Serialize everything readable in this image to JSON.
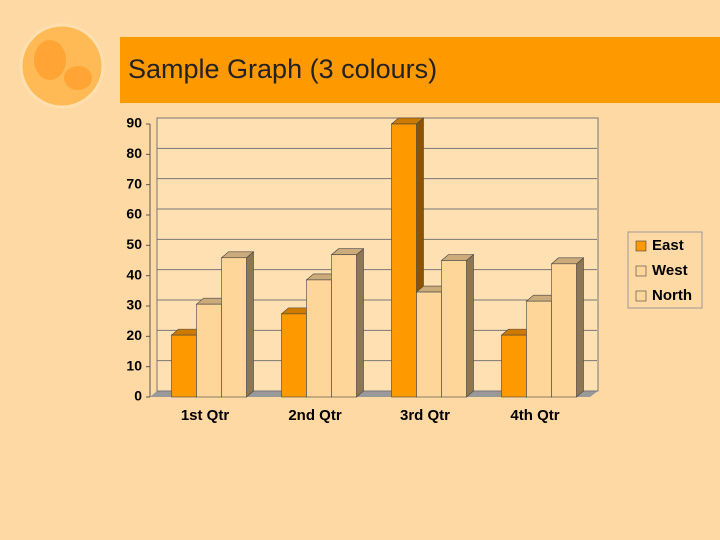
{
  "chart_data": {
    "type": "bar3d",
    "title": "Sample Graph (3 colours)",
    "categories": [
      "1st Qtr",
      "2nd Qtr",
      "3rd Qtr",
      "4th Qtr"
    ],
    "series": [
      {
        "name": "East",
        "color": "#ff9900",
        "values": [
          20.4,
          27.4,
          90,
          20.4
        ]
      },
      {
        "name": "West",
        "color": "#ffd699",
        "values": [
          30.6,
          38.6,
          34.6,
          31.6
        ]
      },
      {
        "name": "North",
        "color": "#ffd699",
        "values": [
          45.9,
          46.9,
          45,
          43.9
        ]
      }
    ],
    "ylim": [
      0,
      90
    ],
    "yticks": [
      0,
      10,
      20,
      30,
      40,
      50,
      60,
      70,
      80,
      90
    ],
    "grid": true,
    "legend": "right"
  }
}
